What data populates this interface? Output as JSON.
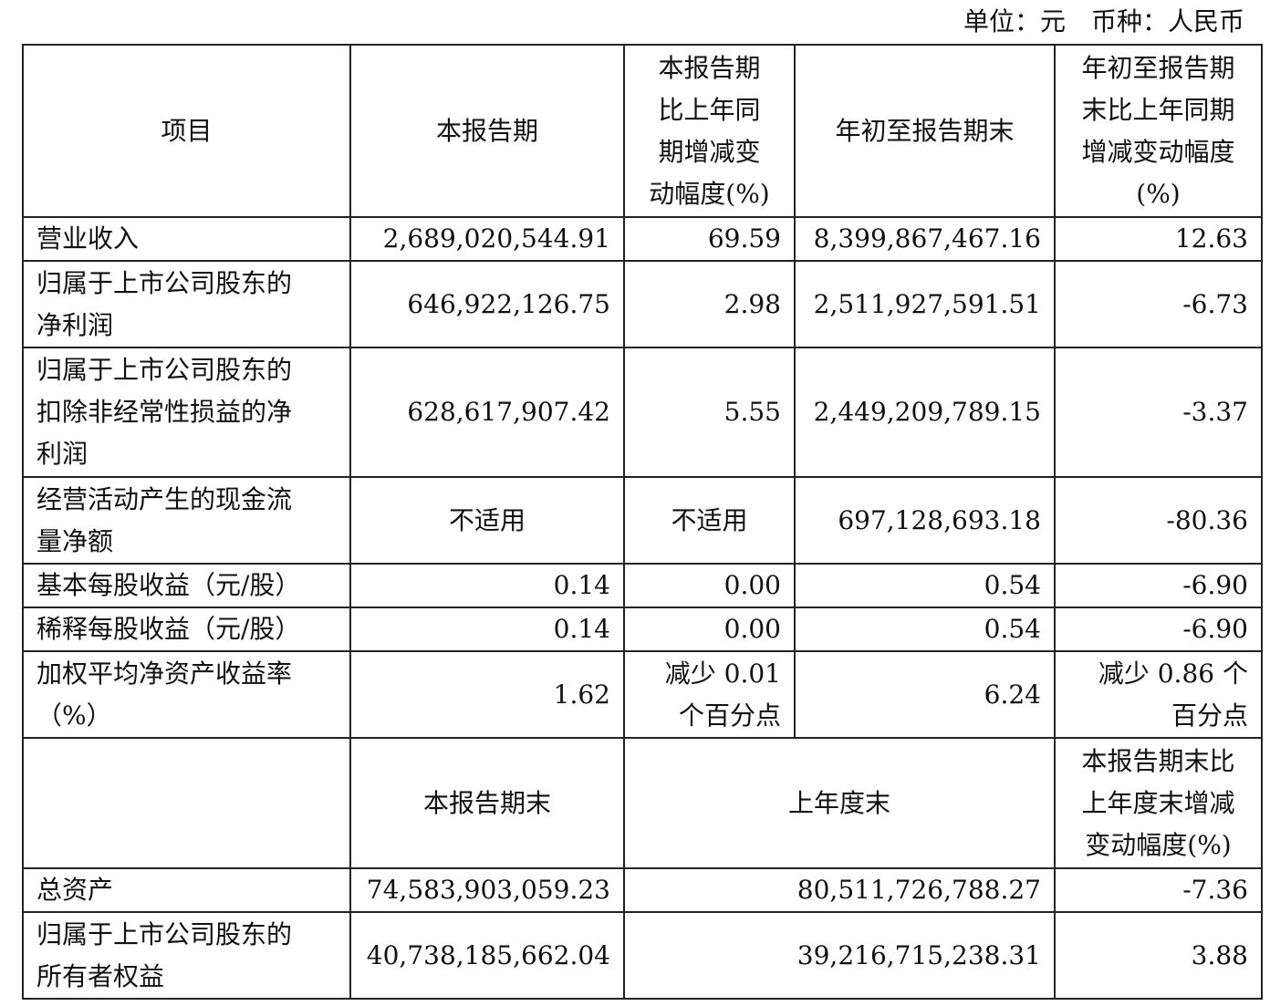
{
  "unit_line": "单位：元　币种：人民币",
  "header": {
    "item": "项目",
    "current": "本报告期",
    "current_change": "本报告期\n比上年同\n期增减变\n动幅度(%)",
    "ytd": "年初至报告期末",
    "ytd_change": "年初至报告期\n末比上年同期\n增减变动幅度\n(%)"
  },
  "rows": [
    {
      "item": "营业收入",
      "current": "2,689,020,544.91",
      "current_change": "69.59",
      "ytd": "8,399,867,467.16",
      "ytd_change": "12.63"
    },
    {
      "item": "归属于上市公司股东的\n净利润",
      "current": "646,922,126.75",
      "current_change": "2.98",
      "ytd": "2,511,927,591.51",
      "ytd_change": "-6.73"
    },
    {
      "item": "归属于上市公司股东的\n扣除非经常性损益的净\n利润",
      "current": "628,617,907.42",
      "current_change": "5.55",
      "ytd": "2,449,209,789.15",
      "ytd_change": "-3.37"
    },
    {
      "item": "经营活动产生的现金流\n量净额",
      "current": "不适用",
      "current_change": "不适用",
      "ytd": "697,128,693.18",
      "ytd_change": "-80.36"
    },
    {
      "item": "基本每股收益（元/股）",
      "current": "0.14",
      "current_change": "0.00",
      "ytd": "0.54",
      "ytd_change": "-6.90"
    },
    {
      "item": "稀释每股收益（元/股）",
      "current": "0.14",
      "current_change": "0.00",
      "ytd": "0.54",
      "ytd_change": "-6.90"
    },
    {
      "item": "加权平均净资产收益率\n（%）",
      "current": "1.62",
      "current_change": "减少 0.01\n个百分点",
      "ytd": "6.24",
      "ytd_change": "减少 0.86 个\n百分点"
    }
  ],
  "header2": {
    "item": "",
    "period_end": "本报告期末",
    "last_year_end": "上年度末",
    "change": "本报告期末比\n上年度末增减\n变动幅度(%)"
  },
  "rows2": [
    {
      "item": "总资产",
      "period_end": "74,583,903,059.23",
      "last_year_end": "80,511,726,788.27",
      "change": "-7.36"
    },
    {
      "item": "归属于上市公司股东的\n所有者权益",
      "period_end": "40,738,185,662.04",
      "last_year_end": "39,216,715,238.31",
      "change": "3.88"
    }
  ]
}
